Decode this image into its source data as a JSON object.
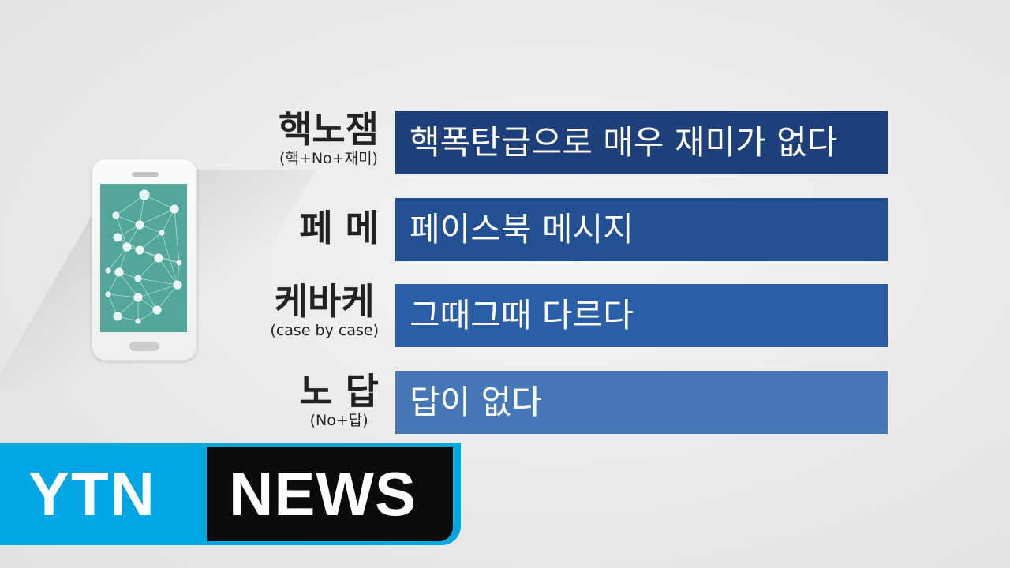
{
  "rows": [
    {
      "term": "핵노잼",
      "note": "(핵+No+재미)",
      "meaning": "핵폭탄급으로 매우 재미가 없다",
      "color": "#1d3f7a"
    },
    {
      "term": "페 메",
      "note": "",
      "meaning": "페이스북 메시지",
      "color": "#234f93"
    },
    {
      "term": "케바케",
      "note": "(case by case)",
      "meaning": "그때그때 다르다",
      "color": "#2a5ea6"
    },
    {
      "term": "노 답",
      "note": "(No+답)",
      "meaning": "답이 없다",
      "color": "#4678b8"
    }
  ],
  "logo": {
    "left": "YTN",
    "right": "NEWS",
    "accent": "#00a5e3",
    "dark": "#0b0b0b"
  },
  "icons": {
    "phone": "smartphone-icon",
    "network": "social-network-icon"
  }
}
